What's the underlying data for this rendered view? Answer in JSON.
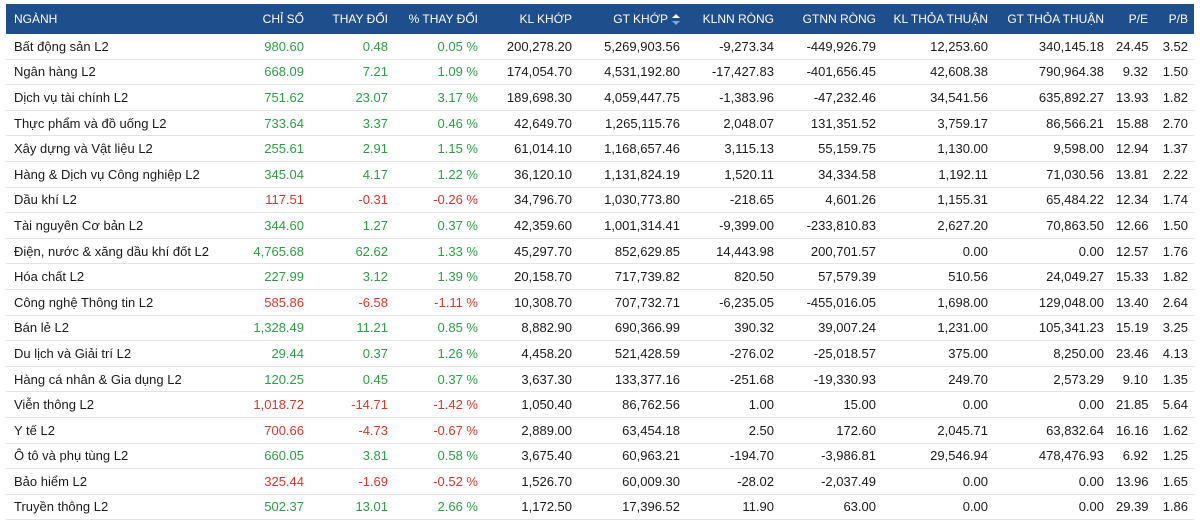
{
  "colors": {
    "header_bg": "#1f4e8c",
    "up": "#2e9e46",
    "down": "#d9372b"
  },
  "columns": [
    "NGÀNH",
    "CHỈ SỐ",
    "THAY ĐỔI",
    "% THAY ĐỔI",
    "KL KHỚP",
    "GT KHỚP",
    "KLNN RÒNG",
    "GTNN RÒNG",
    "KL THỎA THUẬN",
    "GT THỎA THUẬN",
    "P/E",
    "P/B"
  ],
  "sort_column_icon": "sort-arrows-icon",
  "rows": [
    {
      "name": "Bất động sản L2",
      "trend": "up",
      "index": "980.60",
      "change": "0.48",
      "pct": "0.05 %",
      "kl_khop": "200,278.20",
      "gt_khop": "5,269,903.56",
      "klnn": "-9,273.34",
      "gtnn": "-449,926.79",
      "kl_tt": "12,253.60",
      "gt_tt": "340,145.18",
      "pe": "24.45",
      "pb": "3.52"
    },
    {
      "name": "Ngân hàng L2",
      "trend": "up",
      "index": "668.09",
      "change": "7.21",
      "pct": "1.09 %",
      "kl_khop": "174,054.70",
      "gt_khop": "4,531,192.80",
      "klnn": "-17,427.83",
      "gtnn": "-401,656.45",
      "kl_tt": "42,608.38",
      "gt_tt": "790,964.38",
      "pe": "9.32",
      "pb": "1.50"
    },
    {
      "name": "Dịch vụ tài chính L2",
      "trend": "up",
      "index": "751.62",
      "change": "23.07",
      "pct": "3.17 %",
      "kl_khop": "189,698.30",
      "gt_khop": "4,059,447.75",
      "klnn": "-1,383.96",
      "gtnn": "-47,232.46",
      "kl_tt": "34,541.56",
      "gt_tt": "635,892.27",
      "pe": "13.93",
      "pb": "1.82"
    },
    {
      "name": "Thực phẩm và đồ uống L2",
      "trend": "up",
      "index": "733.64",
      "change": "3.37",
      "pct": "0.46 %",
      "kl_khop": "42,649.70",
      "gt_khop": "1,265,115.76",
      "klnn": "2,048.07",
      "gtnn": "131,351.52",
      "kl_tt": "3,759.17",
      "gt_tt": "86,566.21",
      "pe": "15.88",
      "pb": "2.70"
    },
    {
      "name": "Xây dựng và Vật liệu L2",
      "trend": "up",
      "index": "255.61",
      "change": "2.91",
      "pct": "1.15 %",
      "kl_khop": "61,014.10",
      "gt_khop": "1,168,657.46",
      "klnn": "3,115.13",
      "gtnn": "55,159.75",
      "kl_tt": "1,130.00",
      "gt_tt": "9,598.00",
      "pe": "12.94",
      "pb": "1.37"
    },
    {
      "name": "Hàng & Dịch vụ Công nghiệp L2",
      "trend": "up",
      "index": "345.04",
      "change": "4.17",
      "pct": "1.22 %",
      "kl_khop": "36,120.10",
      "gt_khop": "1,131,824.19",
      "klnn": "1,520.11",
      "gtnn": "34,334.58",
      "kl_tt": "1,192.11",
      "gt_tt": "71,030.56",
      "pe": "13.81",
      "pb": "2.22"
    },
    {
      "name": "Dầu khí L2",
      "trend": "down",
      "index": "117.51",
      "change": "-0.31",
      "pct": "-0.26 %",
      "kl_khop": "34,796.70",
      "gt_khop": "1,030,773.80",
      "klnn": "-218.65",
      "gtnn": "4,601.26",
      "kl_tt": "1,155.31",
      "gt_tt": "65,484.22",
      "pe": "12.34",
      "pb": "1.74"
    },
    {
      "name": "Tài nguyên Cơ bản L2",
      "trend": "up",
      "index": "344.60",
      "change": "1.27",
      "pct": "0.37 %",
      "kl_khop": "42,359.60",
      "gt_khop": "1,001,314.41",
      "klnn": "-9,399.00",
      "gtnn": "-233,810.83",
      "kl_tt": "2,627.20",
      "gt_tt": "70,863.50",
      "pe": "12.66",
      "pb": "1.50"
    },
    {
      "name": "Điện, nước & xăng dầu khí đốt L2",
      "trend": "up",
      "index": "4,765.68",
      "change": "62.62",
      "pct": "1.33 %",
      "kl_khop": "45,297.70",
      "gt_khop": "852,629.85",
      "klnn": "14,443.98",
      "gtnn": "200,701.57",
      "kl_tt": "0.00",
      "gt_tt": "0.00",
      "pe": "12.57",
      "pb": "1.76"
    },
    {
      "name": "Hóa chất L2",
      "trend": "up",
      "index": "227.99",
      "change": "3.12",
      "pct": "1.39 %",
      "kl_khop": "20,158.70",
      "gt_khop": "717,739.82",
      "klnn": "820.50",
      "gtnn": "57,579.39",
      "kl_tt": "510.56",
      "gt_tt": "24,049.27",
      "pe": "15.33",
      "pb": "1.82"
    },
    {
      "name": "Công nghệ Thông tin L2",
      "trend": "down",
      "index": "585.86",
      "change": "-6.58",
      "pct": "-1.11 %",
      "kl_khop": "10,308.70",
      "gt_khop": "707,732.71",
      "klnn": "-6,235.05",
      "gtnn": "-455,016.05",
      "kl_tt": "1,698.00",
      "gt_tt": "129,048.00",
      "pe": "13.40",
      "pb": "2.64"
    },
    {
      "name": "Bán lẻ L2",
      "trend": "up",
      "index": "1,328.49",
      "change": "11.21",
      "pct": "0.85 %",
      "kl_khop": "8,882.90",
      "gt_khop": "690,366.99",
      "klnn": "390.32",
      "gtnn": "39,007.24",
      "kl_tt": "1,231.00",
      "gt_tt": "105,341.23",
      "pe": "15.19",
      "pb": "3.25"
    },
    {
      "name": "Du lịch và Giải trí L2",
      "trend": "up",
      "index": "29.44",
      "change": "0.37",
      "pct": "1.26 %",
      "kl_khop": "4,458.20",
      "gt_khop": "521,428.59",
      "klnn": "-276.02",
      "gtnn": "-25,018.57",
      "kl_tt": "375.00",
      "gt_tt": "8,250.00",
      "pe": "23.46",
      "pb": "4.13"
    },
    {
      "name": "Hàng cá nhân & Gia dụng L2",
      "trend": "up",
      "index": "120.25",
      "change": "0.45",
      "pct": "0.37 %",
      "kl_khop": "3,637.30",
      "gt_khop": "133,377.16",
      "klnn": "-251.68",
      "gtnn": "-19,330.93",
      "kl_tt": "249.70",
      "gt_tt": "2,573.29",
      "pe": "9.10",
      "pb": "1.35"
    },
    {
      "name": "Viễn thông L2",
      "trend": "down",
      "index": "1,018.72",
      "change": "-14.71",
      "pct": "-1.42 %",
      "kl_khop": "1,050.40",
      "gt_khop": "86,762.56",
      "klnn": "1.00",
      "gtnn": "15.00",
      "kl_tt": "0.00",
      "gt_tt": "0.00",
      "pe": "21.85",
      "pb": "5.64"
    },
    {
      "name": "Y tế L2",
      "trend": "down",
      "index": "700.66",
      "change": "-4.73",
      "pct": "-0.67 %",
      "kl_khop": "2,889.00",
      "gt_khop": "63,454.18",
      "klnn": "2.50",
      "gtnn": "172.60",
      "kl_tt": "2,045.71",
      "gt_tt": "63,832.64",
      "pe": "16.16",
      "pb": "1.62"
    },
    {
      "name": "Ô tô và phụ tùng L2",
      "trend": "up",
      "index": "660.05",
      "change": "3.81",
      "pct": "0.58 %",
      "kl_khop": "3,675.40",
      "gt_khop": "60,963.21",
      "klnn": "-194.70",
      "gtnn": "-3,986.81",
      "kl_tt": "29,546.94",
      "gt_tt": "478,476.93",
      "pe": "6.92",
      "pb": "1.25"
    },
    {
      "name": "Bảo hiểm L2",
      "trend": "down",
      "index": "325.44",
      "change": "-1.69",
      "pct": "-0.52 %",
      "kl_khop": "1,526.70",
      "gt_khop": "60,009.30",
      "klnn": "-28.02",
      "gtnn": "-2,037.49",
      "kl_tt": "0.00",
      "gt_tt": "0.00",
      "pe": "13.96",
      "pb": "1.65"
    },
    {
      "name": "Truyền thông L2",
      "trend": "up",
      "index": "502.37",
      "change": "13.01",
      "pct": "2.66 %",
      "kl_khop": "1,172.50",
      "gt_khop": "17,396.52",
      "klnn": "11.90",
      "gtnn": "63.00",
      "kl_tt": "0.00",
      "gt_tt": "0.00",
      "pe": "29.39",
      "pb": "1.86"
    }
  ]
}
